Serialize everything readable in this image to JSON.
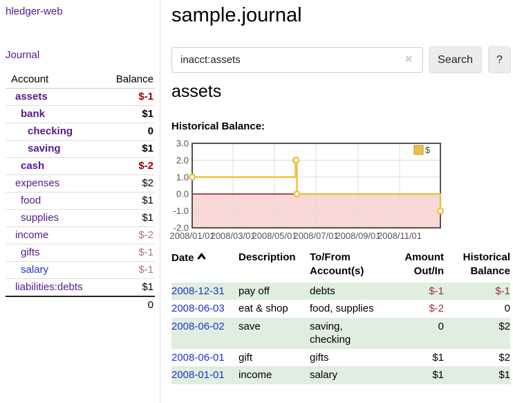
{
  "app": {
    "brand": "hledger-web",
    "nav_journal": "Journal"
  },
  "sidebar": {
    "header": {
      "account": "Account",
      "balance": "Balance"
    },
    "accounts": [
      {
        "name": "assets",
        "balance": "$-1",
        "depth": 1,
        "bold": true,
        "neg": "strong"
      },
      {
        "name": "bank",
        "balance": "$1",
        "depth": 2,
        "bold": true,
        "neg": null
      },
      {
        "name": "checking",
        "balance": "0",
        "depth": 3,
        "bold": true,
        "neg": null
      },
      {
        "name": "saving",
        "balance": "$1",
        "depth": 3,
        "bold": true,
        "neg": null
      },
      {
        "name": "cash",
        "balance": "$-2",
        "depth": 2,
        "bold": true,
        "neg": "strong"
      },
      {
        "name": "expenses",
        "balance": "$2",
        "depth": 1,
        "bold": false,
        "neg": null
      },
      {
        "name": "food",
        "balance": "$1",
        "depth": 2,
        "bold": false,
        "neg": null
      },
      {
        "name": "supplies",
        "balance": "$1",
        "depth": 2,
        "bold": false,
        "neg": null
      },
      {
        "name": "income",
        "balance": "$-2",
        "depth": 1,
        "bold": false,
        "neg": "muted"
      },
      {
        "name": "gifts",
        "balance": "$-1",
        "depth": 2,
        "bold": false,
        "neg": "muted"
      },
      {
        "name": "salary",
        "balance": "$-1",
        "depth": 2,
        "bold": false,
        "neg": "muted",
        "blue": true
      },
      {
        "name": "liabilities:debts",
        "balance": "$1",
        "depth": 1,
        "bold": false,
        "neg": null
      }
    ],
    "total": "0"
  },
  "main": {
    "title": "sample.journal",
    "search": {
      "value": "inacct:assets",
      "clear_icon": "×",
      "button_label": "Search",
      "help_label": "?"
    },
    "account_heading": "assets",
    "register": {
      "headers": {
        "date": "Date",
        "description": "Description",
        "accounts": "To/From Account(s)",
        "amount": "Amount Out/In",
        "balance": "Historical Balance"
      },
      "rows": [
        {
          "date": "2008-12-31",
          "description": "pay off",
          "accounts": "debts",
          "amount": "$-1",
          "balance": "$-1",
          "amount_negative": true,
          "balance_negative": true
        },
        {
          "date": "2008-06-03",
          "description": "eat & shop",
          "accounts": "food, supplies",
          "amount": "$-2",
          "balance": "0",
          "amount_negative": true,
          "balance_negative": false
        },
        {
          "date": "2008-06-02",
          "description": "save",
          "accounts": "saving, checking",
          "amount": "0",
          "balance": "$2",
          "amount_negative": false,
          "balance_negative": false
        },
        {
          "date": "2008-06-01",
          "description": "gift",
          "accounts": "gifts",
          "amount": "$1",
          "balance": "$2",
          "amount_negative": false,
          "balance_negative": false
        },
        {
          "date": "2008-01-01",
          "description": "income",
          "accounts": "salary",
          "amount": "$1",
          "balance": "$1",
          "amount_negative": false,
          "balance_negative": false
        }
      ]
    }
  },
  "chart_data": {
    "type": "line",
    "title": "Historical Balance:",
    "style": "step",
    "series": [
      {
        "name": "$",
        "color": "#edc240",
        "points": [
          [
            "2008-01-01",
            1
          ],
          [
            "2008-06-01",
            2
          ],
          [
            "2008-06-02",
            2
          ],
          [
            "2008-06-03",
            0
          ],
          [
            "2008-12-31",
            -1
          ]
        ]
      }
    ],
    "x_range": [
      "2008-01-01",
      "2008-12-31"
    ],
    "y_range": [
      -2,
      3
    ],
    "x_ticks": [
      "2008/01/01",
      "2008/03/01",
      "2008/05/01",
      "2008/07/01",
      "2008/09/01",
      "2008/11/01"
    ],
    "y_ticks": [
      3.0,
      2.0,
      1.0,
      0.0,
      -1.0,
      -2.0
    ],
    "legend": {
      "label": "$",
      "position": "top-right"
    },
    "grid": true,
    "colors": {
      "grid_line": "#dcdcdc",
      "border": "#545454",
      "tick_text": "#545454",
      "zero_line": "#8b0000",
      "negative_region": "#fad8d8"
    }
  }
}
